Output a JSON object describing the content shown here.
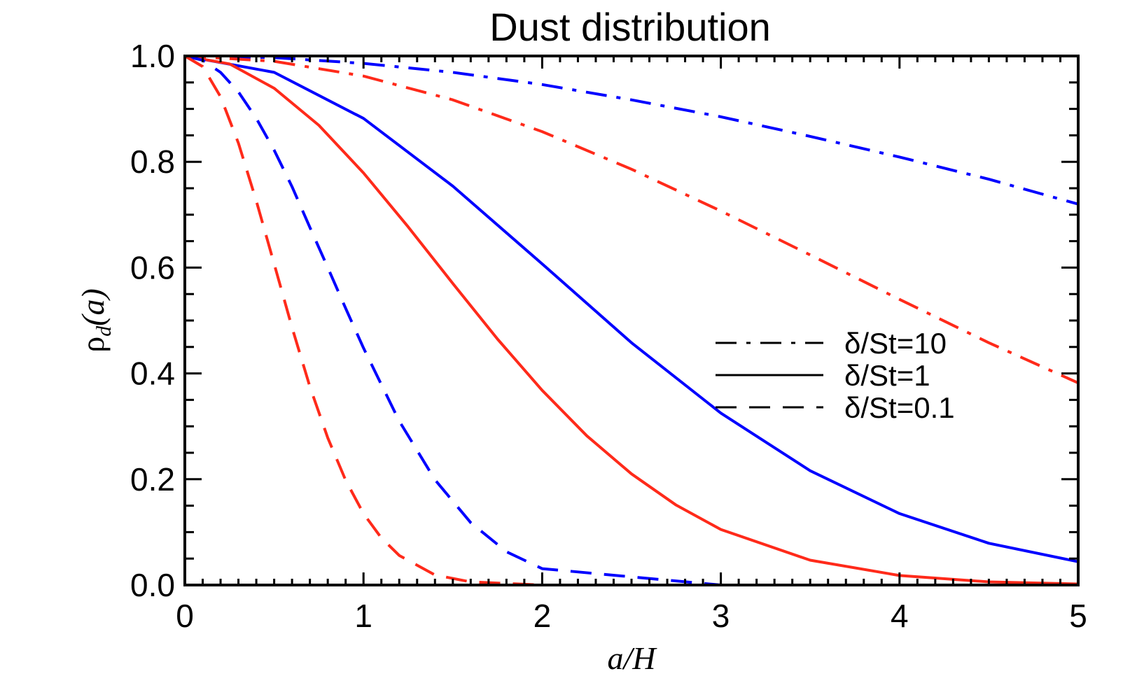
{
  "chart_data": {
    "type": "line",
    "title": "Dust distribution",
    "xlabel": "a/H",
    "ylabel_base": "ρ",
    "ylabel_sub": "d",
    "ylabel_arg": "(a)",
    "xlim": [
      0,
      5
    ],
    "ylim": [
      0,
      1
    ],
    "x_ticks": [
      0,
      1,
      2,
      3,
      4,
      5
    ],
    "x_tick_labels": [
      "0",
      "1",
      "2",
      "3",
      "4",
      "5"
    ],
    "y_ticks": [
      0,
      0.2,
      0.4,
      0.6,
      0.8,
      1.0
    ],
    "y_tick_labels": [
      "0.0",
      "0.2",
      "0.4",
      "0.6",
      "0.8",
      "1.0"
    ],
    "grid": false,
    "legend_position": "center-right",
    "legend": [
      {
        "label": "δ/St=10",
        "style": "dashdot"
      },
      {
        "label": "δ/St=1",
        "style": "solid"
      },
      {
        "label": "δ/St=0.1",
        "style": "dashed"
      }
    ],
    "colors": {
      "blue": "#0000ff",
      "red": "#ff2a1a"
    },
    "series": [
      {
        "color": "blue",
        "style": "dashdot",
        "x": [
          0,
          0.5,
          1,
          1.5,
          2,
          2.5,
          3,
          3.5,
          4,
          4.5,
          5
        ],
        "y": [
          1.0,
          0.997,
          0.986,
          0.969,
          0.946,
          0.917,
          0.885,
          0.848,
          0.809,
          0.767,
          0.72
        ]
      },
      {
        "color": "red",
        "style": "dashdot",
        "x": [
          0,
          0.5,
          1,
          1.5,
          2,
          2.5,
          3,
          3.5,
          4,
          4.5,
          5
        ],
        "y": [
          1.0,
          0.99,
          0.962,
          0.917,
          0.857,
          0.786,
          0.707,
          0.624,
          0.54,
          0.458,
          0.382
        ]
      },
      {
        "color": "blue",
        "style": "solid",
        "x": [
          0,
          0.5,
          1,
          1.5,
          2,
          2.5,
          3,
          3.5,
          4,
          4.5,
          5
        ],
        "y": [
          1.0,
          0.969,
          0.882,
          0.754,
          0.607,
          0.458,
          0.325,
          0.216,
          0.135,
          0.079,
          0.044
        ]
      },
      {
        "color": "red",
        "style": "solid",
        "x": [
          0,
          0.25,
          0.5,
          0.75,
          1,
          1.25,
          1.5,
          1.75,
          2,
          2.25,
          2.5,
          2.75,
          3,
          3.5,
          4,
          4.5,
          5
        ],
        "y": [
          1.0,
          0.985,
          0.939,
          0.869,
          0.779,
          0.677,
          0.57,
          0.465,
          0.368,
          0.282,
          0.21,
          0.151,
          0.105,
          0.047,
          0.018,
          0.006,
          0.002
        ]
      },
      {
        "color": "blue",
        "style": "dashed",
        "x": [
          0,
          0.1,
          0.2,
          0.3,
          0.4,
          0.5,
          0.6,
          0.7,
          0.8,
          0.9,
          1,
          1.2,
          1.4,
          1.6,
          1.8,
          2,
          3,
          4,
          5
        ],
        "y": [
          1.0,
          0.992,
          0.969,
          0.932,
          0.882,
          0.822,
          0.753,
          0.676,
          0.6,
          0.523,
          0.448,
          0.31,
          0.199,
          0.118,
          0.063,
          0.031,
          0.0,
          0.0,
          0.0
        ]
      },
      {
        "color": "red",
        "style": "dashed",
        "x": [
          0,
          0.1,
          0.2,
          0.3,
          0.4,
          0.5,
          0.6,
          0.7,
          0.8,
          0.9,
          1,
          1.1,
          1.2,
          1.4,
          1.6,
          2,
          3,
          4,
          5
        ],
        "y": [
          1.0,
          0.98,
          0.923,
          0.835,
          0.726,
          0.607,
          0.487,
          0.375,
          0.278,
          0.198,
          0.135,
          0.089,
          0.056,
          0.019,
          0.006,
          0.0,
          0.0,
          0.0,
          0.0
        ]
      }
    ]
  }
}
